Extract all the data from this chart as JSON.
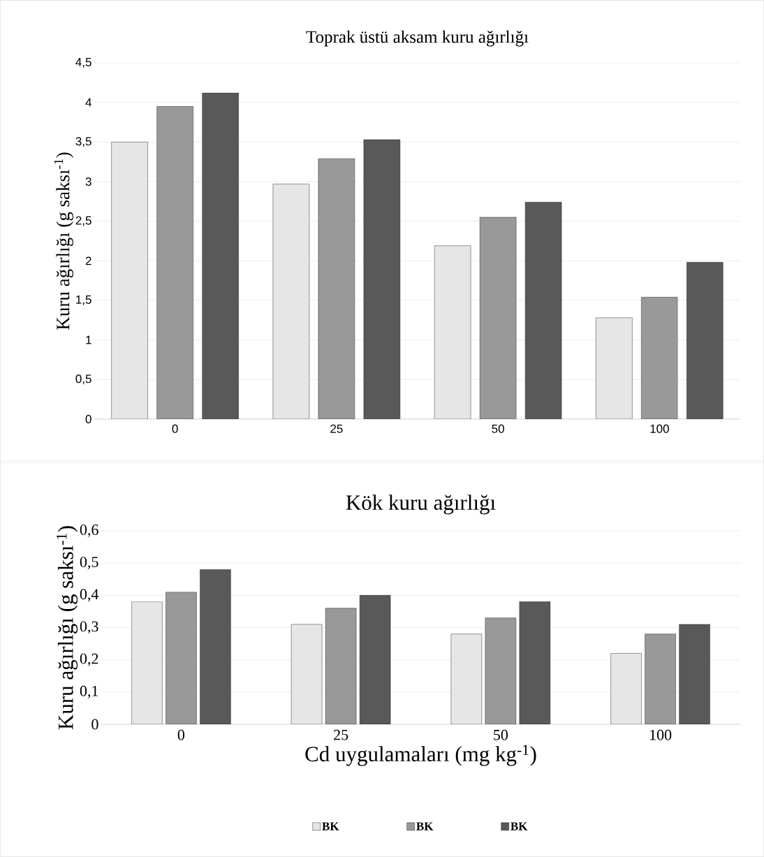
{
  "chart_data": [
    {
      "type": "bar",
      "title": "Toprak üstü aksam kuru ağırlığı",
      "ylabel": "Kuru ağırlığı (g saksı$^{-1}$)",
      "categories": [
        "0",
        "25",
        "50",
        "100"
      ],
      "series": [
        {
          "color": "#e6e6e6",
          "values": [
            3.5,
            2.97,
            2.19,
            1.28
          ]
        },
        {
          "color": "#999999",
          "values": [
            3.95,
            3.29,
            2.55,
            1.54
          ]
        },
        {
          "color": "#595959",
          "values": [
            4.12,
            3.53,
            2.74,
            1.98
          ]
        }
      ],
      "ylim": [
        0,
        4.5
      ],
      "yticks": [
        0,
        {
          "value": 0.5,
          "label": "0,5"
        },
        1,
        {
          "value": 1.5,
          "label": "1,5"
        },
        2,
        {
          "value": 2.5,
          "label": "2,5"
        },
        3,
        {
          "value": 3.5,
          "label": "3,5"
        },
        4,
        {
          "value": 4.5,
          "label": "4,5"
        }
      ],
      "grid": "y",
      "legend": false
    },
    {
      "type": "bar",
      "title": "Kök kuru ağırlığı",
      "ylabel": "Kuru ağırlığı (g saksı$^{-1}$)",
      "xlabel": "Cd uygulamaları (mg kg$^{-1}$)",
      "categories": [
        "0",
        "25",
        "50",
        "100"
      ],
      "series": [
        {
          "name": "BK",
          "color": "#e6e6e6",
          "values": [
            0.38,
            0.31,
            0.28,
            0.22
          ]
        },
        {
          "name": "BK",
          "color": "#999999",
          "values": [
            0.41,
            0.36,
            0.33,
            0.28
          ]
        },
        {
          "name": "BK",
          "color": "#595959",
          "values": [
            0.48,
            0.4,
            0.38,
            0.31
          ]
        }
      ],
      "ylim": [
        0,
        0.6
      ],
      "yticks": [
        0,
        {
          "value": 0.1,
          "label": "0,1"
        },
        {
          "value": 0.2,
          "label": "0,2"
        },
        {
          "value": 0.3,
          "label": "0,3"
        },
        {
          "value": 0.4,
          "label": "0,4"
        },
        {
          "value": 0.5,
          "label": "0,5"
        },
        {
          "value": 0.6,
          "label": "0,6"
        }
      ],
      "grid": "y",
      "legend": "bottom"
    }
  ]
}
